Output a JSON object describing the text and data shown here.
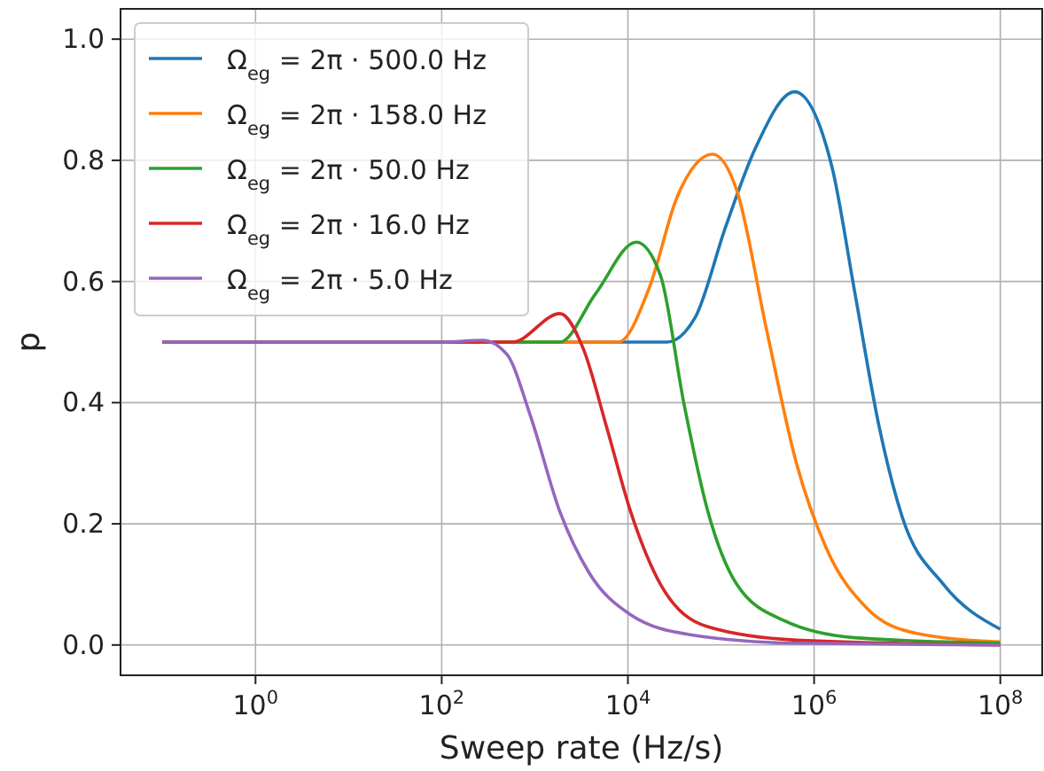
{
  "chart_data": {
    "type": "line",
    "xlabel": "Sweep rate (Hz/s)",
    "ylabel": "p",
    "log": "x",
    "grid": true,
    "legend": "top left",
    "xlim": [
      0.0355,
      282000000
    ],
    "ylim": [
      -0.05,
      1.05
    ],
    "xticks": [
      {
        "value": 1,
        "label": "10$^{0}$"
      },
      {
        "value": 100,
        "label": "10$^{2}$"
      },
      {
        "value": 10000,
        "label": "10$^{4}$"
      },
      {
        "value": 1000000,
        "label": "10$^{6}$"
      },
      {
        "value": 100000000,
        "label": "10$^{8}$"
      }
    ],
    "yticks": [
      {
        "value": 0,
        "label": "0.0"
      },
      {
        "value": 0.2,
        "label": "0.2"
      },
      {
        "value": 0.4,
        "label": "0.4"
      },
      {
        "value": 0.6,
        "label": "0.6"
      },
      {
        "value": 0.8,
        "label": "0.8"
      },
      {
        "value": 1,
        "label": "1.0"
      }
    ],
    "series": [
      {
        "name": "Ω$_{eg}$ = 2π · 500.0 Hz",
        "color": "#1f77b4",
        "x": [
          0.1,
          26300,
          52500,
          112000,
          234000,
          617000,
          1550000,
          2750000,
          5000000,
          8900000,
          24500000,
          100000000
        ],
        "values": [
          0.5,
          0.5,
          0.54,
          0.69,
          0.82,
          0.913,
          0.79,
          0.58,
          0.36,
          0.21,
          0.1,
          0.026
        ]
      },
      {
        "name": "Ω$_{eg}$ = 2π · 158.0 Hz",
        "color": "#ff7f0e",
        "x": [
          0.1,
          7900,
          17000,
          33900,
          81300,
          148000,
          309000,
          646000,
          1350000,
          3720000,
          12000000,
          100000000
        ],
        "values": [
          0.5,
          0.5,
          0.59,
          0.74,
          0.81,
          0.75,
          0.52,
          0.3,
          0.16,
          0.06,
          0.02,
          0.005
        ]
      },
      {
        "name": "Ω$_{eg}$ = 2π · 50.0 Hz",
        "color": "#2ca02c",
        "x": [
          0.1,
          1860,
          4500,
          12300,
          22400,
          39800,
          72400,
          148000,
          479000,
          2750000,
          100000000
        ],
        "values": [
          0.5,
          0.5,
          0.58,
          0.665,
          0.61,
          0.4,
          0.22,
          0.1,
          0.04,
          0.012,
          0.003
        ]
      },
      {
        "name": "Ω$_{eg}$ = 2π · 16.0 Hz",
        "color": "#d62728",
        "x": [
          0.1,
          575,
          1860,
          3300,
          5900,
          10700,
          22400,
          72400,
          650000,
          100000000
        ],
        "values": [
          0.5,
          0.5,
          0.547,
          0.49,
          0.36,
          0.22,
          0.1,
          0.03,
          0.008,
          0
        ]
      },
      {
        "name": "Ω$_{eg}$ = 2π · 5.0 Hz",
        "color": "#9467bd",
        "x": [
          0.1,
          100,
          275,
          500,
          890,
          1860,
          3800,
          10700,
          46800,
          650000,
          100000000
        ],
        "values": [
          0.5,
          0.5,
          0.503,
          0.48,
          0.38,
          0.22,
          0.12,
          0.05,
          0.017,
          0.003,
          0
        ]
      }
    ]
  }
}
